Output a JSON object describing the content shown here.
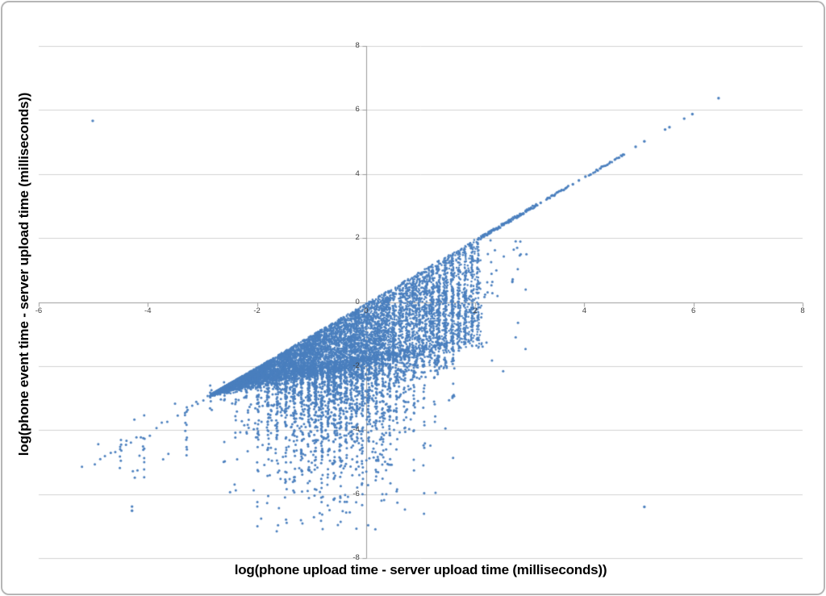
{
  "chart_data": {
    "type": "scatter",
    "title": "",
    "xlabel": "log(phone upload time - server upload time (milliseconds))",
    "ylabel": "log(phone event time - server upload time (milliseconds))",
    "xlim": [
      -6,
      8
    ],
    "ylim": [
      -8,
      8
    ],
    "x_ticks": [
      -6,
      -4,
      -2,
      0,
      2,
      4,
      6,
      8
    ],
    "y_ticks": [
      8,
      6,
      4,
      2,
      0,
      -2,
      -4,
      -6,
      -8
    ],
    "grid": "horizontal-only",
    "legend": "none",
    "marker_color": "#4a7fbe",
    "axis_color": "#9b9b9b",
    "gridline_color": "#d2d2d2",
    "tick_label_color": "#3f3f3f",
    "seed": 20,
    "clusters": [
      {
        "name": "dense-triangle-wedge",
        "kind": "wedge",
        "x": [
          -2.85,
          2.12
        ],
        "top": {
          "m": 1.0,
          "b": -0.04
        },
        "bottom": {
          "m": 0.3,
          "b": -1.88
        },
        "bottom_noise": 0.35,
        "n": 9200,
        "r": 1.25,
        "streaks": {
          "from": 0.45,
          "snap_p": 0.55,
          "drop_p": 0.45,
          "cols": [
            0.5,
            0.62,
            0.74,
            0.86,
            0.98,
            1.1,
            1.22,
            1.34,
            1.46,
            1.58,
            1.7,
            1.82,
            1.94,
            2.05
          ]
        }
      },
      {
        "name": "mid-right-vertical-streaks",
        "kind": "columns",
        "jx": 0.03,
        "r": 1.35,
        "cols": [
          {
            "x": 0.52,
            "y": [
              -2.35,
              0.3
            ],
            "n": 45
          },
          {
            "x": 0.65,
            "y": [
              -2.3,
              0.45
            ],
            "n": 50
          },
          {
            "x": 0.78,
            "y": [
              -2.1,
              0.55
            ],
            "n": 45
          },
          {
            "x": 0.92,
            "y": [
              -2.25,
              0.7
            ],
            "n": 55
          },
          {
            "x": 1.05,
            "y": [
              -2.0,
              0.85
            ],
            "n": 55
          },
          {
            "x": 1.18,
            "y": [
              -2.1,
              1.0
            ],
            "n": 65
          },
          {
            "x": 1.32,
            "y": [
              -2.3,
              1.15
            ],
            "n": 110
          },
          {
            "x": 1.45,
            "y": [
              -2.2,
              1.3
            ],
            "n": 85
          },
          {
            "x": 1.58,
            "y": [
              -1.9,
              1.4
            ],
            "n": 55
          },
          {
            "x": 1.7,
            "y": [
              -1.6,
              1.55
            ],
            "n": 40
          },
          {
            "x": 1.82,
            "y": [
              -1.3,
              1.65
            ],
            "n": 30
          },
          {
            "x": 1.95,
            "y": [
              -0.9,
              1.8
            ],
            "n": 22
          }
        ]
      },
      {
        "name": "below-wedge-cloud",
        "kind": "decay",
        "x": [
          -2.7,
          1.72
        ],
        "xc": -0.55,
        "xsd": 0.85,
        "top": {
          "m": 0.3,
          "b": -1.95
        },
        "scale": 1.25,
        "ymin": -7.2,
        "n": 2500,
        "snap_p": 0.6,
        "jx": 0.018,
        "r": 1.5,
        "cols": [
          -2.82,
          -2.6,
          -2.38,
          -2.18,
          -1.98,
          -1.8,
          -1.63,
          -1.47,
          -1.32,
          -1.18,
          -1.05,
          -0.93,
          -0.81,
          -0.69,
          -0.58,
          -0.47,
          -0.37,
          -0.27,
          -0.17,
          -0.07,
          0.05,
          0.18,
          0.3,
          0.43,
          0.56,
          0.7,
          0.88,
          1.06,
          1.26,
          1.44,
          1.6
        ]
      },
      {
        "name": "lower-left-diagonal",
        "kind": "lineseg",
        "x": [
          -5.25,
          -2.9
        ],
        "m": 1.0,
        "b": -0.05,
        "n": 26,
        "jx": 0.015,
        "jy": 0.05,
        "gap_p": 0.3,
        "r": 1.5
      },
      {
        "name": "left-sparse-scatter",
        "kind": "box",
        "x": [
          -5.3,
          -3.05
        ],
        "y": [
          -5.6,
          -3.1
        ],
        "n": 15,
        "r": 1.5
      },
      {
        "name": "left-vertical-streaks",
        "kind": "columns",
        "jx": 0.02,
        "r": 1.5,
        "cols": [
          {
            "x": -4.5,
            "y": [
              -5.25,
              -4.35
            ],
            "n": 6
          },
          {
            "x": -4.07,
            "y": [
              -5.6,
              -4.2
            ],
            "n": 9
          },
          {
            "x": -3.3,
            "y": [
              -4.95,
              -2.98
            ],
            "n": 12
          },
          {
            "x": -2.84,
            "y": [
              -3.42,
              -2.6
            ],
            "n": 9
          }
        ]
      },
      {
        "name": "right-of-wedge-sparse",
        "kind": "box",
        "x": [
          2.0,
          2.95
        ],
        "y": [
          -2.3,
          2.0
        ],
        "n": 40,
        "top": {
          "m": 1.0,
          "b": -0.2
        },
        "r": 1.5
      },
      {
        "name": "upper-diagonal-dense",
        "kind": "lineseg",
        "x": [
          2.12,
          3.14
        ],
        "m": 1.0,
        "b": -0.09,
        "n": 130,
        "jx": 0.01,
        "jy": 0.05,
        "gap_p": 0.05,
        "r": 1.35
      },
      {
        "name": "upper-diagonal-run2",
        "kind": "lineseg",
        "x": [
          3.3,
          3.7
        ],
        "m": 1.0,
        "b": -0.1,
        "n": 24,
        "jx": 0.01,
        "jy": 0.03,
        "gap_p": 0.15,
        "r": 1.5
      },
      {
        "name": "upper-diagonal-run3",
        "kind": "lineseg",
        "x": [
          4.08,
          4.5
        ],
        "m": 1.0,
        "b": -0.11,
        "n": 20,
        "jx": 0.01,
        "jy": 0.03,
        "gap_p": 0.15,
        "r": 1.5
      },
      {
        "name": "upper-diagonal-run4",
        "kind": "lineseg",
        "x": [
          4.55,
          4.73
        ],
        "m": 1.0,
        "b": -0.11,
        "n": 9,
        "jx": 0.01,
        "jy": 0.02,
        "gap_p": 0.1,
        "r": 1.5
      },
      {
        "name": "upper-diagonal-dots",
        "kind": "points",
        "r": 1.7,
        "pts": [
          [
            3.2,
            3.1
          ],
          [
            3.79,
            3.68
          ],
          [
            3.9,
            3.8
          ],
          [
            4.02,
            3.92
          ],
          [
            4.94,
            4.85
          ],
          [
            5.1,
            5.02
          ],
          [
            5.48,
            5.39
          ],
          [
            5.56,
            5.46
          ],
          [
            5.83,
            5.73
          ],
          [
            5.98,
            5.87
          ],
          [
            6.46,
            6.37
          ]
        ]
      },
      {
        "name": "isolated-outliers",
        "kind": "points",
        "r": 1.7,
        "pts": [
          [
            -5.01,
            5.66
          ],
          [
            5.1,
            -6.4
          ],
          [
            -4.29,
            -6.39
          ],
          [
            -4.29,
            -6.52
          ]
        ]
      }
    ]
  }
}
